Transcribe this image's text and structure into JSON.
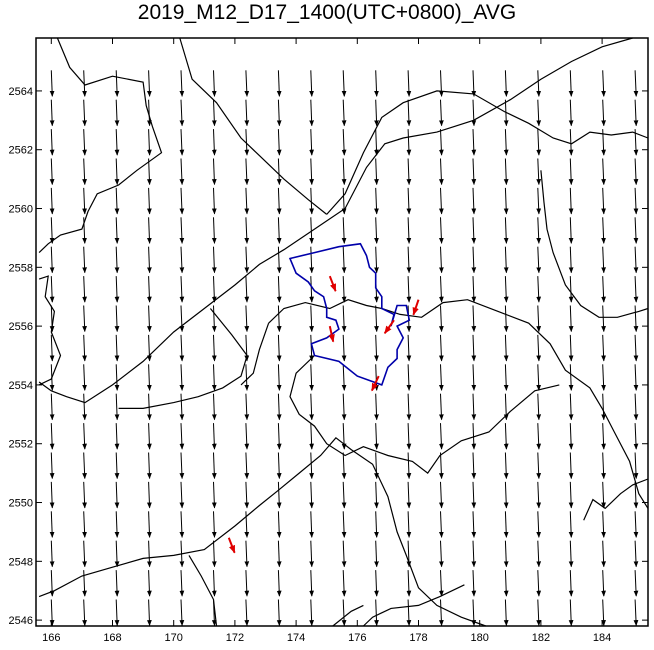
{
  "title": "2019_M12_D17_1400(UTC+0800)_AVG",
  "colors": {
    "background": "#ffffff",
    "frame": "#000000",
    "boundary_lines": "#000000",
    "site_boundary": "#0000aa",
    "wind_arrows": "#000000",
    "highlight_arrows": "#e00000"
  },
  "map": {
    "x_range": [
      165.5,
      185.5
    ],
    "y_range": [
      2545.8,
      2565.8
    ],
    "x_ticks": [
      "166",
      "168",
      "170",
      "172",
      "174",
      "176",
      "178",
      "180",
      "182",
      "184"
    ],
    "y_ticks": [
      "2546",
      "2548",
      "2550",
      "2552",
      "2554",
      "2556",
      "2558",
      "2560",
      "2562",
      "2564"
    ],
    "wind_field": {
      "x_start": 166,
      "x_step": 1.06,
      "x_count": 19,
      "y_start": 2564.7,
      "y_step": -1.0,
      "y_count": 19,
      "u": 0.04,
      "v": -1.0
    },
    "highlight_vectors": [
      {
        "x": 175.1,
        "y": 2557.7,
        "u": 0.35,
        "v": -0.9
      },
      {
        "x": 175.1,
        "y": 2556.0,
        "u": 0.2,
        "v": -0.9
      },
      {
        "x": 177.2,
        "y": 2556.2,
        "u": -0.5,
        "v": -0.7
      },
      {
        "x": 178.0,
        "y": 2556.9,
        "u": -0.3,
        "v": -0.9
      },
      {
        "x": 176.7,
        "y": 2554.3,
        "u": -0.4,
        "v": -0.85
      },
      {
        "x": 171.8,
        "y": 2548.8,
        "u": 0.35,
        "v": -0.9
      }
    ],
    "site_polygon": [
      [
        173.8,
        2558.3
      ],
      [
        174.6,
        2558.5
      ],
      [
        175.4,
        2558.7
      ],
      [
        176.1,
        2558.8
      ],
      [
        176.3,
        2558.4
      ],
      [
        176.4,
        2558.0
      ],
      [
        176.6,
        2557.8
      ],
      [
        176.6,
        2557.3
      ],
      [
        176.8,
        2557.0
      ],
      [
        176.8,
        2556.6
      ],
      [
        177.2,
        2556.4
      ],
      [
        177.1,
        2556.0
      ],
      [
        177.3,
        2556.7
      ],
      [
        177.6,
        2556.7
      ],
      [
        177.7,
        2556.2
      ],
      [
        177.3,
        2556.0
      ],
      [
        177.5,
        2555.6
      ],
      [
        177.3,
        2555.2
      ],
      [
        177.3,
        2554.9
      ],
      [
        177.0,
        2554.6
      ],
      [
        176.8,
        2554.0
      ],
      [
        176.0,
        2554.3
      ],
      [
        175.4,
        2554.8
      ],
      [
        174.6,
        2555.0
      ],
      [
        174.5,
        2555.4
      ],
      [
        175.0,
        2555.6
      ],
      [
        175.4,
        2555.9
      ],
      [
        175.3,
        2556.2
      ],
      [
        175.0,
        2556.3
      ],
      [
        175.0,
        2556.6
      ],
      [
        174.9,
        2557.0
      ],
      [
        174.6,
        2557.2
      ],
      [
        174.4,
        2557.5
      ],
      [
        174.0,
        2557.8
      ]
    ],
    "boundary_lines": [
      [
        [
          166.2,
          2565.8
        ],
        [
          166.6,
          2564.8
        ],
        [
          167.1,
          2564.2
        ],
        [
          168.0,
          2564.5
        ],
        [
          169.0,
          2564.3
        ],
        [
          169.1,
          2563.5
        ],
        [
          169.3,
          2562.8
        ],
        [
          169.6,
          2561.9
        ],
        [
          168.8,
          2561.3
        ],
        [
          168.2,
          2560.8
        ],
        [
          167.5,
          2560.5
        ],
        [
          167.2,
          2559.9
        ],
        [
          167.0,
          2559.3
        ],
        [
          166.3,
          2559.1
        ],
        [
          165.9,
          2558.8
        ],
        [
          165.6,
          2558.5
        ]
      ],
      [
        [
          165.6,
          2557.6
        ],
        [
          165.9,
          2557.7
        ],
        [
          165.8,
          2557.0
        ],
        [
          166.1,
          2556.5
        ],
        [
          166.0,
          2555.8
        ],
        [
          166.3,
          2555.0
        ],
        [
          166.0,
          2554.2
        ],
        [
          165.6,
          2554.0
        ]
      ],
      [
        [
          165.6,
          2554.1
        ],
        [
          166.0,
          2553.8
        ],
        [
          166.5,
          2553.6
        ],
        [
          167.1,
          2553.4
        ],
        [
          168.0,
          2554.0
        ],
        [
          169.0,
          2554.8
        ],
        [
          170.0,
          2555.8
        ],
        [
          171.0,
          2556.6
        ],
        [
          172.0,
          2557.4
        ],
        [
          172.8,
          2558.1
        ],
        [
          173.6,
          2558.6
        ],
        [
          174.6,
          2559.3
        ],
        [
          175.6,
          2560.0
        ],
        [
          176.3,
          2561.4
        ],
        [
          176.9,
          2562.2
        ],
        [
          177.5,
          2562.4
        ],
        [
          178.6,
          2562.6
        ],
        [
          179.8,
          2563.0
        ],
        [
          181.0,
          2563.7
        ],
        [
          182.0,
          2564.4
        ],
        [
          183.0,
          2565.0
        ],
        [
          184.0,
          2565.5
        ],
        [
          185.0,
          2565.8
        ]
      ],
      [
        [
          170.2,
          2565.8
        ],
        [
          170.6,
          2564.4
        ],
        [
          171.4,
          2563.6
        ],
        [
          172.2,
          2562.4
        ],
        [
          172.8,
          2561.8
        ],
        [
          173.6,
          2561.0
        ],
        [
          174.4,
          2560.3
        ],
        [
          175.0,
          2559.8
        ]
      ],
      [
        [
          175.0,
          2559.8
        ],
        [
          175.6,
          2560.5
        ],
        [
          176.2,
          2561.9
        ],
        [
          176.8,
          2563.1
        ],
        [
          177.5,
          2563.6
        ],
        [
          178.6,
          2564.0
        ],
        [
          179.8,
          2563.9
        ],
        [
          180.8,
          2563.3
        ],
        [
          181.6,
          2562.9
        ],
        [
          182.4,
          2562.4
        ],
        [
          183.0,
          2562.2
        ],
        [
          183.6,
          2562.6
        ],
        [
          184.3,
          2562.5
        ],
        [
          185.0,
          2562.6
        ],
        [
          185.5,
          2562.4
        ]
      ],
      [
        [
          182.0,
          2561.3
        ],
        [
          182.1,
          2560.2
        ],
        [
          182.2,
          2559.3
        ],
        [
          182.4,
          2558.5
        ],
        [
          182.8,
          2557.4
        ],
        [
          183.3,
          2556.7
        ],
        [
          183.9,
          2556.3
        ],
        [
          184.5,
          2556.3
        ],
        [
          185.2,
          2556.5
        ],
        [
          185.5,
          2556.6
        ]
      ],
      [
        [
          173.1,
          2556.1
        ],
        [
          173.6,
          2556.6
        ],
        [
          174.3,
          2556.8
        ],
        [
          175.1,
          2556.6
        ],
        [
          175.7,
          2556.9
        ],
        [
          176.3,
          2556.7
        ],
        [
          176.8,
          2556.6
        ],
        [
          177.4,
          2556.4
        ],
        [
          178.1,
          2556.3
        ],
        [
          178.8,
          2556.8
        ],
        [
          179.6,
          2556.9
        ],
        [
          180.6,
          2556.5
        ],
        [
          181.6,
          2556.1
        ],
        [
          182.3,
          2555.4
        ],
        [
          182.8,
          2554.5
        ],
        [
          183.6,
          2553.9
        ],
        [
          184.0,
          2553.2
        ],
        [
          184.4,
          2552.4
        ],
        [
          184.9,
          2551.4
        ],
        [
          185.2,
          2550.3
        ],
        [
          185.5,
          2549.8
        ]
      ],
      [
        [
          171.2,
          2556.6
        ],
        [
          171.9,
          2555.7
        ],
        [
          172.4,
          2555.0
        ],
        [
          172.2,
          2554.3
        ],
        [
          171.6,
          2553.9
        ],
        [
          170.8,
          2553.6
        ],
        [
          170.0,
          2553.4
        ],
        [
          169.0,
          2553.2
        ],
        [
          168.2,
          2553.2
        ]
      ],
      [
        [
          173.1,
          2556.1
        ],
        [
          172.8,
          2555.2
        ],
        [
          172.6,
          2554.4
        ],
        [
          172.2,
          2554.0
        ]
      ],
      [
        [
          174.6,
          2555.0
        ],
        [
          174.0,
          2554.4
        ],
        [
          173.8,
          2553.6
        ],
        [
          174.1,
          2553.0
        ],
        [
          174.6,
          2552.6
        ],
        [
          175.0,
          2552.0
        ],
        [
          175.6,
          2551.6
        ],
        [
          176.2,
          2551.9
        ],
        [
          177.0,
          2551.6
        ],
        [
          177.8,
          2551.4
        ],
        [
          178.3,
          2551.0
        ],
        [
          178.7,
          2551.6
        ],
        [
          179.4,
          2552.1
        ],
        [
          180.3,
          2552.4
        ],
        [
          181.0,
          2553.1
        ],
        [
          181.8,
          2553.8
        ],
        [
          182.6,
          2554.0
        ]
      ],
      [
        [
          165.6,
          2546.8
        ],
        [
          166.1,
          2547.0
        ],
        [
          167.0,
          2547.5
        ],
        [
          168.0,
          2547.8
        ],
        [
          169.0,
          2548.1
        ],
        [
          170.0,
          2548.2
        ],
        [
          171.0,
          2548.4
        ],
        [
          172.0,
          2549.2
        ],
        [
          172.8,
          2549.9
        ],
        [
          173.4,
          2550.4
        ],
        [
          174.1,
          2551.0
        ],
        [
          174.8,
          2551.6
        ],
        [
          175.3,
          2552.2
        ],
        [
          175.8,
          2551.8
        ],
        [
          176.5,
          2551.3
        ],
        [
          177.0,
          2550.2
        ],
        [
          177.3,
          2549.0
        ],
        [
          177.6,
          2548.2
        ],
        [
          178.0,
          2547.1
        ],
        [
          178.6,
          2546.5
        ],
        [
          179.4,
          2546.1
        ],
        [
          180.2,
          2545.8
        ]
      ],
      [
        [
          170.5,
          2548.2
        ],
        [
          170.9,
          2547.5
        ],
        [
          171.3,
          2546.7
        ],
        [
          171.4,
          2545.8
        ]
      ],
      [
        [
          176.2,
          2545.8
        ],
        [
          176.5,
          2546.1
        ],
        [
          177.1,
          2546.4
        ],
        [
          178.0,
          2546.5
        ],
        [
          178.7,
          2546.8
        ],
        [
          179.5,
          2547.2
        ]
      ],
      [
        [
          175.2,
          2545.8
        ],
        [
          175.8,
          2546.3
        ],
        [
          176.2,
          2546.5
        ]
      ],
      [
        [
          183.4,
          2549.4
        ],
        [
          183.7,
          2550.1
        ],
        [
          184.1,
          2549.8
        ],
        [
          184.6,
          2550.3
        ],
        [
          185.0,
          2550.6
        ],
        [
          185.5,
          2550.8
        ]
      ]
    ]
  }
}
